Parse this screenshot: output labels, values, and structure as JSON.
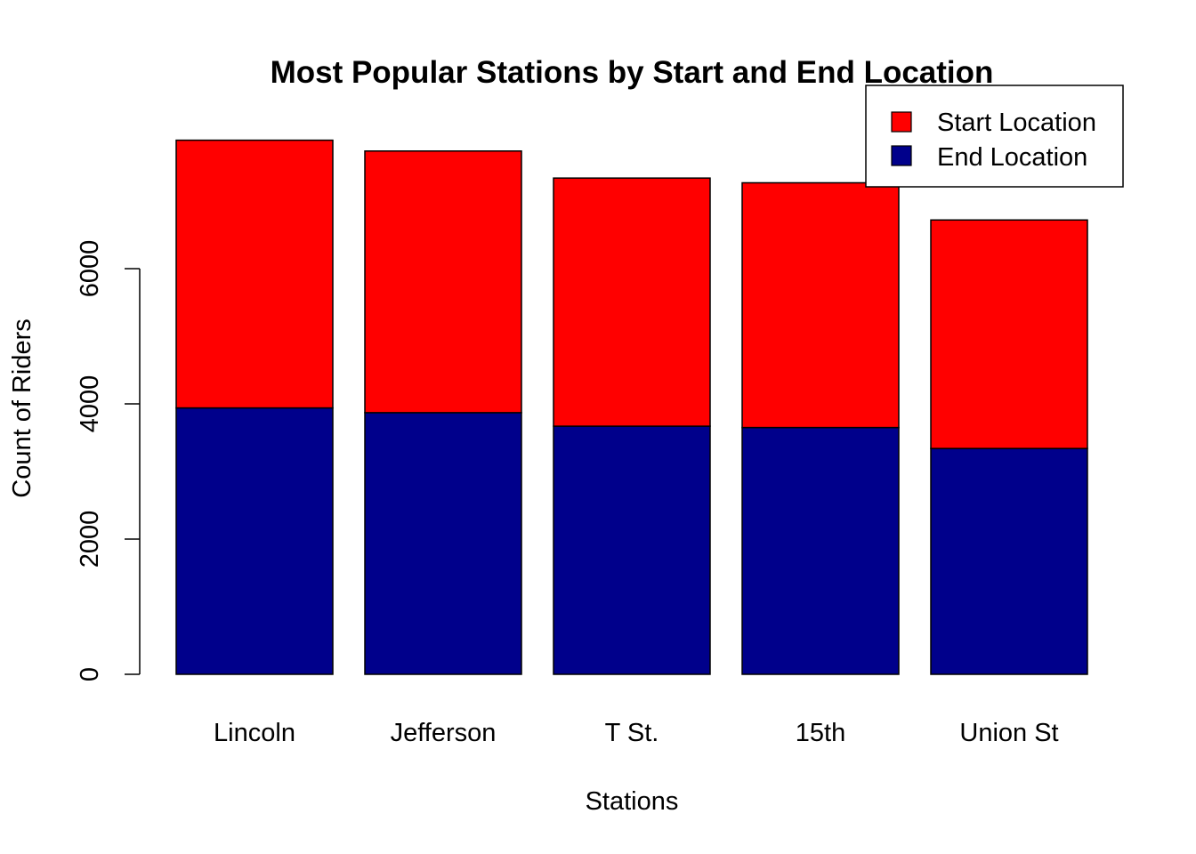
{
  "chart_data": {
    "type": "bar",
    "stacked": true,
    "title": "Most Popular Stations by Start and End Location",
    "xlabel": "Stations",
    "ylabel": "Count of Riders",
    "categories": [
      "Lincoln",
      "Jefferson",
      "T St.",
      "15th",
      "Union St"
    ],
    "ylim": [
      0,
      8000
    ],
    "yticks": [
      0,
      2000,
      4000,
      6000
    ],
    "series": [
      {
        "name": "End Location",
        "color": "#00008B",
        "values": [
          3940,
          3870,
          3670,
          3650,
          3340
        ]
      },
      {
        "name": "Start Location",
        "color": "#FF0000",
        "values": [
          3960,
          3870,
          3670,
          3620,
          3380
        ]
      }
    ],
    "legend": {
      "position": "top-right",
      "entries": [
        {
          "label": "Start Location",
          "color": "#FF0000"
        },
        {
          "label": "End Location",
          "color": "#00008B"
        }
      ]
    },
    "grid": false
  }
}
